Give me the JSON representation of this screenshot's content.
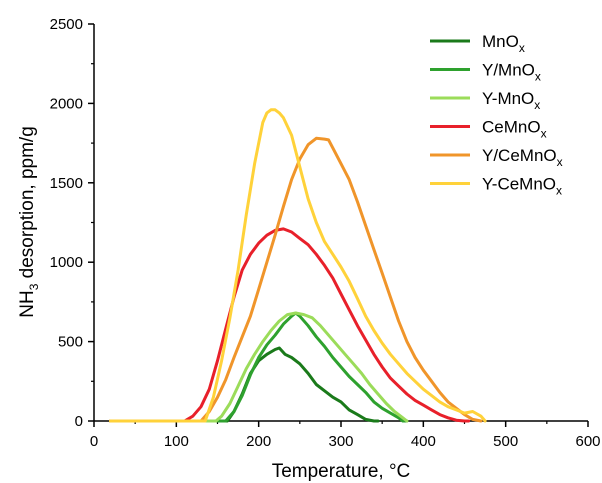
{
  "chart_data": {
    "type": "line",
    "xlabel": "Temperature, °C",
    "ylabel_main": "NH",
    "ylabel_sub": "3",
    "ylabel_rest": " desorption, ppm/g",
    "xlim": [
      0,
      600
    ],
    "ylim": [
      0,
      2500
    ],
    "xticks": [
      0,
      100,
      200,
      300,
      400,
      500,
      600
    ],
    "yticks": [
      0,
      500,
      1000,
      1500,
      2000,
      2500
    ],
    "grid": false,
    "legend_position": "top-right",
    "series": [
      {
        "name": "MnOx",
        "label_main": "MnO",
        "label_sub": "x",
        "color": "#1a7a1a",
        "x": [
          20,
          150,
          162,
          170,
          180,
          190,
          200,
          210,
          220,
          225,
          232,
          240,
          250,
          260,
          270,
          280,
          290,
          300,
          310,
          320,
          330,
          340,
          345
        ],
        "y": [
          0,
          0,
          0,
          60,
          170,
          300,
          380,
          420,
          450,
          460,
          420,
          400,
          360,
          300,
          230,
          190,
          150,
          120,
          70,
          40,
          10,
          0,
          0
        ]
      },
      {
        "name": "Y/MnOx",
        "label_main": "Y/MnO",
        "label_sub": "x",
        "color": "#2ea12e",
        "x": [
          20,
          160,
          170,
          180,
          190,
          200,
          210,
          220,
          230,
          240,
          245,
          250,
          260,
          270,
          280,
          290,
          300,
          310,
          320,
          330,
          340,
          350,
          360,
          370,
          375,
          380
        ],
        "y": [
          0,
          0,
          60,
          160,
          290,
          400,
          480,
          540,
          610,
          660,
          680,
          660,
          600,
          530,
          470,
          400,
          340,
          280,
          230,
          180,
          120,
          80,
          50,
          20,
          0,
          0
        ]
      },
      {
        "name": "Y-MnOx",
        "label_main": "Y-MnO",
        "label_sub": "x",
        "color": "#9bdc5a",
        "x": [
          20,
          148,
          155,
          165,
          175,
          185,
          195,
          205,
          215,
          225,
          235,
          245,
          255,
          265,
          275,
          285,
          295,
          305,
          315,
          325,
          335,
          345,
          355,
          365,
          375,
          380
        ],
        "y": [
          0,
          0,
          30,
          110,
          220,
          330,
          420,
          500,
          570,
          630,
          670,
          680,
          670,
          650,
          600,
          540,
          480,
          420,
          360,
          300,
          230,
          170,
          110,
          60,
          20,
          0
        ]
      },
      {
        "name": "CeMnOx",
        "label_main": "CeMnO",
        "label_sub": "x",
        "color": "#e8202a",
        "x": [
          20,
          110,
          120,
          130,
          140,
          150,
          160,
          170,
          180,
          190,
          200,
          210,
          220,
          230,
          240,
          250,
          260,
          270,
          280,
          290,
          300,
          310,
          320,
          330,
          340,
          350,
          360,
          370,
          380,
          390,
          400,
          410,
          420,
          430,
          440,
          450,
          455
        ],
        "y": [
          0,
          0,
          30,
          90,
          200,
          380,
          580,
          780,
          950,
          1050,
          1120,
          1170,
          1200,
          1210,
          1190,
          1150,
          1110,
          1050,
          980,
          900,
          800,
          700,
          600,
          510,
          420,
          340,
          270,
          220,
          170,
          130,
          100,
          70,
          40,
          20,
          5,
          0,
          0
        ]
      },
      {
        "name": "Y/CeMnOx",
        "label_main": "Y/CeMnO",
        "label_sub": "x",
        "color": "#f0952a",
        "x": [
          20,
          130,
          140,
          150,
          160,
          170,
          180,
          190,
          200,
          210,
          220,
          230,
          240,
          250,
          260,
          270,
          280,
          285,
          290,
          300,
          310,
          320,
          330,
          340,
          350,
          360,
          370,
          380,
          390,
          400,
          410,
          420,
          430,
          440,
          450,
          460,
          470
        ],
        "y": [
          0,
          0,
          60,
          150,
          260,
          400,
          530,
          660,
          830,
          1000,
          1170,
          1350,
          1520,
          1650,
          1740,
          1780,
          1775,
          1770,
          1720,
          1620,
          1520,
          1380,
          1230,
          1080,
          930,
          780,
          630,
          500,
          400,
          320,
          250,
          180,
          120,
          80,
          40,
          10,
          0
        ]
      },
      {
        "name": "Y-CeMnOx",
        "label_main": "Y-CeMnO",
        "label_sub": "x",
        "color": "#ffd23a",
        "x": [
          20,
          135,
          145,
          155,
          165,
          175,
          185,
          195,
          205,
          210,
          215,
          220,
          225,
          230,
          240,
          250,
          260,
          270,
          280,
          290,
          300,
          310,
          320,
          330,
          340,
          350,
          360,
          370,
          380,
          390,
          400,
          410,
          420,
          430,
          440,
          450,
          460,
          470,
          475
        ],
        "y": [
          0,
          0,
          150,
          380,
          650,
          950,
          1300,
          1620,
          1880,
          1940,
          1960,
          1960,
          1940,
          1910,
          1800,
          1600,
          1400,
          1250,
          1130,
          1050,
          970,
          880,
          770,
          660,
          570,
          490,
          420,
          360,
          300,
          250,
          200,
          160,
          120,
          90,
          70,
          50,
          60,
          30,
          0
        ]
      }
    ]
  }
}
